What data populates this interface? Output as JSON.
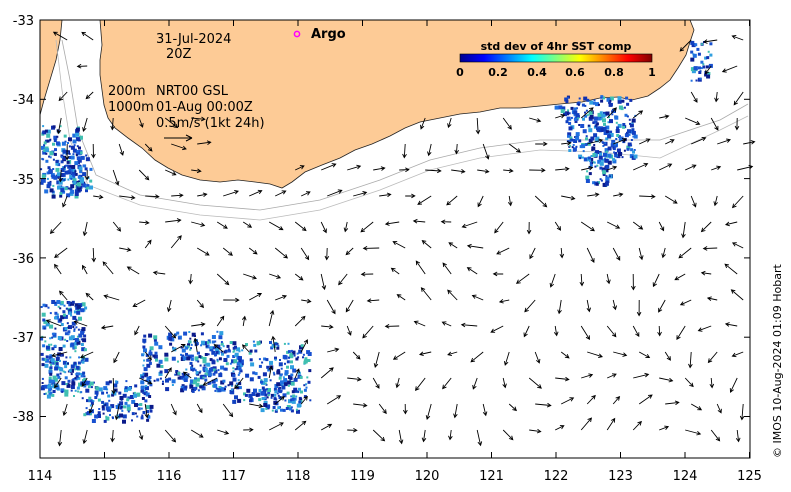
{
  "map": {
    "date_line": "31-Jul-2024",
    "hour_line": "20Z",
    "depth_line_1": "200m",
    "product_line_1": "NRT00 GSL",
    "depth_line_2": "1000m",
    "product_line_2": "01-Aug 00:00Z",
    "scale_label": "0.5m/s (1kt 24h)",
    "argo_label": "Argo",
    "credit": "© IMOS 10-Aug-2024 01:09 Hobart",
    "x_ticks": [
      "114",
      "115",
      "116",
      "117",
      "118",
      "119",
      "120",
      "121",
      "122",
      "123",
      "124",
      "125"
    ],
    "y_ticks": [
      "-33",
      "-34",
      "-35",
      "-36",
      "-37",
      "-38"
    ],
    "colorbar": {
      "title": "std dev of 4hr SST comp",
      "ticks": [
        "0",
        "0.2",
        "0.4",
        "0.6",
        "0.8",
        "1"
      ]
    },
    "colors": {
      "land": "#fdcb96",
      "argo_marker": "#ff00ff",
      "sst_low": "#1020a0",
      "sst_mid": "#2060e0"
    }
  }
}
